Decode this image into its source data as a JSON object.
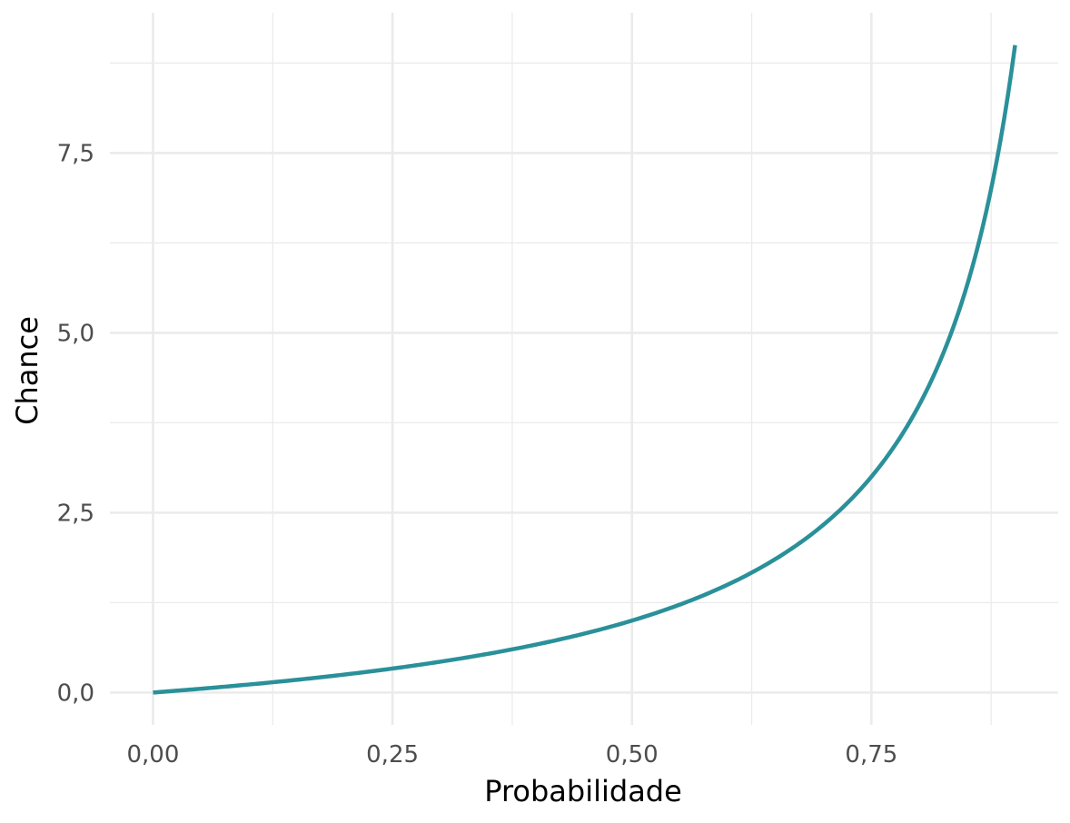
{
  "chart_data": {
    "type": "line",
    "title": "",
    "xlabel": "Probabilidade",
    "ylabel": "Chance",
    "xlim": [
      -0.045,
      0.945
    ],
    "ylim": [
      -0.45,
      9.45
    ],
    "x_ticks": [
      0.0,
      0.25,
      0.5,
      0.75
    ],
    "x_tick_labels": [
      "0,00",
      "0,25",
      "0,50",
      "0,75"
    ],
    "x_minor_ticks": [
      0.125,
      0.375,
      0.625,
      0.875
    ],
    "y_ticks": [
      0.0,
      2.5,
      5.0,
      7.5
    ],
    "y_tick_labels": [
      "0,0",
      "2,5",
      "5,0",
      "7,5"
    ],
    "y_minor_ticks": [
      1.25,
      3.75,
      6.25,
      8.75
    ],
    "grid": true,
    "series": [
      {
        "color": "#2a9099",
        "x": [
          0.0,
          0.05,
          0.1,
          0.15,
          0.2,
          0.25,
          0.3,
          0.35,
          0.4,
          0.45,
          0.5,
          0.55,
          0.6,
          0.65,
          0.7,
          0.75,
          0.8,
          0.85,
          0.9
        ],
        "y": [
          0.0,
          0.053,
          0.111,
          0.176,
          0.25,
          0.333,
          0.429,
          0.538,
          0.667,
          0.818,
          1.0,
          1.222,
          1.5,
          1.857,
          2.333,
          3.0,
          4.0,
          5.667,
          9.0
        ]
      }
    ]
  }
}
